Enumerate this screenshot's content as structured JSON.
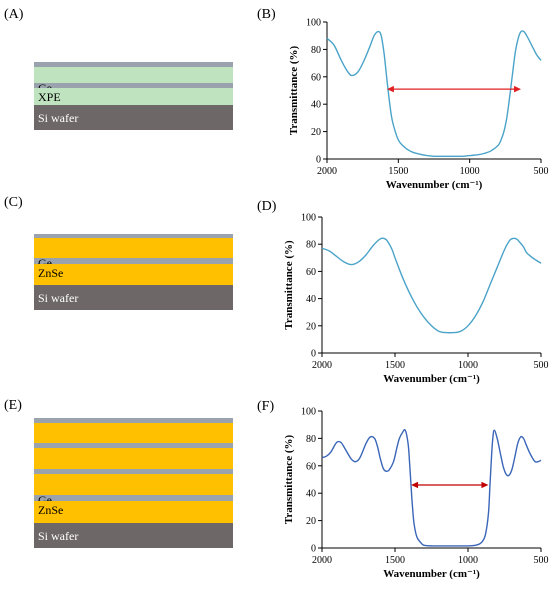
{
  "panels": {
    "A": "(A)",
    "B": "(B)",
    "C": "(C)",
    "D": "(D)",
    "E": "(E)",
    "F": "(F)"
  },
  "stacks": {
    "A": {
      "labels": {
        "ge": "Ge",
        "spacer": "XPE",
        "substrate": "Si wafer"
      },
      "colors": {
        "spacer": "#bfe3bf",
        "ge": "#9aa3ad",
        "substrate": "#6d6767"
      }
    },
    "C": {
      "labels": {
        "ge": "Ge",
        "spacer": "ZnSe",
        "substrate": "Si wafer"
      },
      "colors": {
        "spacer": "#ffc000",
        "ge": "#9aa3ad",
        "substrate": "#6d6767"
      }
    },
    "E": {
      "labels": {
        "ge": "Ge",
        "spacer": "ZnSe",
        "substrate": "Si wafer"
      },
      "colors": {
        "spacer": "#ffc000",
        "ge": "#9aa3ad",
        "substrate": "#6d6767"
      }
    }
  },
  "chart_data": [
    {
      "id": "B",
      "type": "line",
      "xlabel": "Wavenumber (cm⁻¹)",
      "ylabel": "Transmittance (%)",
      "xlim": [
        2000,
        500
      ],
      "ylim": [
        0,
        100
      ],
      "xticks": [
        2000,
        1500,
        1000,
        500
      ],
      "yticks": [
        0,
        20,
        40,
        60,
        80,
        100
      ],
      "series": [
        {
          "color": "#4aa3c8",
          "x": [
            2000,
            1950,
            1900,
            1850,
            1820,
            1780,
            1740,
            1700,
            1670,
            1640,
            1620,
            1600,
            1580,
            1560,
            1540,
            1500,
            1450,
            1400,
            1350,
            1300,
            1250,
            1200,
            1150,
            1100,
            1050,
            1000,
            950,
            900,
            850,
            800,
            780,
            760,
            740,
            720,
            700,
            680,
            660,
            640,
            620,
            600,
            560,
            530,
            500
          ],
          "y": [
            88,
            83,
            72,
            63,
            61,
            64,
            72,
            82,
            90,
            93,
            90,
            77,
            58,
            40,
            27,
            14,
            8,
            5,
            3.5,
            2.5,
            2,
            2,
            2,
            2,
            2,
            2.5,
            3,
            4,
            6,
            10,
            14,
            20,
            30,
            45,
            62,
            78,
            88,
            93,
            93,
            90,
            82,
            76,
            72
          ]
        }
      ],
      "annotation": {
        "type": "double-arrow",
        "color": "#e02020",
        "x": [
          1580,
          640
        ],
        "y": 51
      }
    },
    {
      "id": "D",
      "type": "line",
      "xlabel": "Wavenumber (cm⁻¹)",
      "ylabel": "Transmittance (%)",
      "xlim": [
        2000,
        500
      ],
      "ylim": [
        0,
        100
      ],
      "xticks": [
        2000,
        1500,
        1000,
        500
      ],
      "yticks": [
        0,
        20,
        40,
        60,
        80,
        100
      ],
      "series": [
        {
          "color": "#4aa3c8",
          "x": [
            2000,
            1950,
            1900,
            1850,
            1800,
            1750,
            1700,
            1650,
            1600,
            1570,
            1550,
            1520,
            1500,
            1450,
            1400,
            1350,
            1300,
            1250,
            1200,
            1150,
            1100,
            1050,
            1000,
            950,
            900,
            850,
            800,
            750,
            720,
            700,
            670,
            650,
            620,
            600,
            570,
            530,
            500
          ],
          "y": [
            77,
            75,
            71,
            67,
            65,
            67,
            72,
            79,
            84,
            84,
            82,
            76,
            70,
            56,
            44,
            34,
            26,
            20,
            16,
            15,
            15,
            16,
            20,
            27,
            37,
            50,
            63,
            76,
            82,
            84,
            84,
            82,
            78,
            74,
            71,
            68,
            66
          ]
        }
      ]
    },
    {
      "id": "F",
      "type": "line",
      "xlabel": "Wavenumber (cm⁻¹)",
      "ylabel": "Transmittance (%)",
      "xlim": [
        2000,
        500
      ],
      "ylim": [
        0,
        100
      ],
      "xticks": [
        2000,
        1500,
        1000,
        500
      ],
      "yticks": [
        0,
        20,
        40,
        60,
        80,
        100
      ],
      "series": [
        {
          "color": "#3a66b8",
          "x": [
            2000,
            1970,
            1940,
            1900,
            1870,
            1840,
            1800,
            1770,
            1740,
            1700,
            1670,
            1640,
            1620,
            1600,
            1580,
            1560,
            1540,
            1510,
            1490,
            1470,
            1450,
            1430,
            1410,
            1400,
            1390,
            1380,
            1370,
            1350,
            1320,
            1300,
            1250,
            1200,
            1150,
            1100,
            1050,
            1000,
            950,
            920,
            900,
            880,
            860,
            850,
            840,
            830,
            820,
            800,
            780,
            760,
            740,
            720,
            700,
            680,
            660,
            640,
            620,
            600,
            580,
            560,
            540,
            520,
            500
          ],
          "y": [
            66,
            67,
            70,
            77,
            77,
            72,
            65,
            63,
            66,
            76,
            81,
            80,
            74,
            65,
            58,
            56,
            57,
            63,
            72,
            80,
            84,
            86,
            76,
            62,
            45,
            30,
            18,
            8,
            3.5,
            2,
            1.5,
            1.5,
            1.5,
            1.5,
            1.5,
            1.5,
            2,
            3,
            5,
            10,
            25,
            45,
            65,
            80,
            86,
            80,
            70,
            60,
            54,
            53,
            57,
            66,
            76,
            81,
            80,
            75,
            70,
            66,
            63,
            63,
            64
          ]
        }
      ],
      "annotation": {
        "type": "double-arrow",
        "color": "#c00000",
        "x": [
          1390,
          860
        ],
        "y": 46
      }
    }
  ]
}
